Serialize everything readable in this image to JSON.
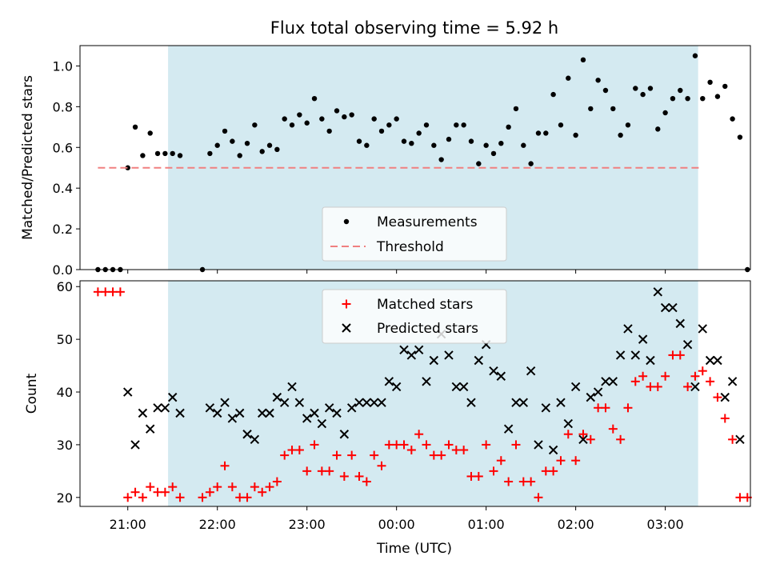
{
  "chart_data": [
    {
      "type": "scatter",
      "title": "Flux total observing time = 5.92 h",
      "ylabel": "Matched/Predicted stars",
      "ylim": [
        0,
        1.1
      ],
      "yticks": [
        "0.0",
        "0.2",
        "0.4",
        "0.6",
        "0.8",
        "1.0"
      ],
      "xlim": [
        "20:28",
        "03:57"
      ],
      "shaded_span": [
        "21:27",
        "03:22"
      ],
      "shade_color": "#d4eaf1",
      "threshold": {
        "value": 0.5,
        "from": "20:40",
        "to": "03:25",
        "color": "#f08080"
      },
      "legend": {
        "position": "lower center",
        "items": [
          "Measurements",
          "Threshold"
        ]
      },
      "series": [
        {
          "name": "Measurements",
          "color": "#000000",
          "points": [
            [
              "20:40",
              0.0
            ],
            [
              "20:45",
              0.0
            ],
            [
              "20:50",
              0.0
            ],
            [
              "20:55",
              0.0
            ],
            [
              "21:00",
              0.5
            ],
            [
              "21:05",
              0.7
            ],
            [
              "21:10",
              0.56
            ],
            [
              "21:15",
              0.67
            ],
            [
              "21:20",
              0.57
            ],
            [
              "21:25",
              0.57
            ],
            [
              "21:30",
              0.57
            ],
            [
              "21:35",
              0.56
            ],
            [
              "21:50",
              0.0
            ],
            [
              "21:55",
              0.57
            ],
            [
              "22:00",
              0.61
            ],
            [
              "22:05",
              0.68
            ],
            [
              "22:10",
              0.63
            ],
            [
              "22:15",
              0.56
            ],
            [
              "22:20",
              0.62
            ],
            [
              "22:25",
              0.71
            ],
            [
              "22:30",
              0.58
            ],
            [
              "22:35",
              0.61
            ],
            [
              "22:40",
              0.59
            ],
            [
              "22:45",
              0.74
            ],
            [
              "22:50",
              0.71
            ],
            [
              "22:55",
              0.76
            ],
            [
              "23:00",
              0.72
            ],
            [
              "23:05",
              0.84
            ],
            [
              "23:10",
              0.74
            ],
            [
              "23:15",
              0.68
            ],
            [
              "23:20",
              0.78
            ],
            [
              "23:25",
              0.75
            ],
            [
              "23:30",
              0.76
            ],
            [
              "23:35",
              0.63
            ],
            [
              "23:40",
              0.61
            ],
            [
              "23:45",
              0.74
            ],
            [
              "23:50",
              0.68
            ],
            [
              "23:55",
              0.71
            ],
            [
              "00:00",
              0.74
            ],
            [
              "00:05",
              0.63
            ],
            [
              "00:10",
              0.62
            ],
            [
              "00:15",
              0.67
            ],
            [
              "00:20",
              0.71
            ],
            [
              "00:25",
              0.61
            ],
            [
              "00:30",
              0.54
            ],
            [
              "00:35",
              0.64
            ],
            [
              "00:40",
              0.71
            ],
            [
              "00:45",
              0.71
            ],
            [
              "00:50",
              0.63
            ],
            [
              "00:55",
              0.52
            ],
            [
              "01:00",
              0.61
            ],
            [
              "01:05",
              0.57
            ],
            [
              "01:10",
              0.62
            ],
            [
              "01:15",
              0.7
            ],
            [
              "01:20",
              0.79
            ],
            [
              "01:25",
              0.61
            ],
            [
              "01:30",
              0.52
            ],
            [
              "01:35",
              0.67
            ],
            [
              "01:40",
              0.67
            ],
            [
              "01:45",
              0.86
            ],
            [
              "01:50",
              0.71
            ],
            [
              "01:55",
              0.94
            ],
            [
              "02:00",
              0.66
            ],
            [
              "02:05",
              1.03
            ],
            [
              "02:10",
              0.79
            ],
            [
              "02:15",
              0.93
            ],
            [
              "02:20",
              0.88
            ],
            [
              "02:25",
              0.79
            ],
            [
              "02:30",
              0.66
            ],
            [
              "02:35",
              0.71
            ],
            [
              "02:40",
              0.89
            ],
            [
              "02:45",
              0.86
            ],
            [
              "02:50",
              0.89
            ],
            [
              "02:55",
              0.69
            ],
            [
              "03:00",
              0.77
            ],
            [
              "03:05",
              0.84
            ],
            [
              "03:10",
              0.88
            ],
            [
              "03:15",
              0.84
            ],
            [
              "03:20",
              1.05
            ],
            [
              "03:25",
              0.84
            ],
            [
              "03:30",
              0.92
            ],
            [
              "03:35",
              0.85
            ],
            [
              "03:40",
              0.9
            ],
            [
              "03:45",
              0.74
            ],
            [
              "03:50",
              0.65
            ],
            [
              "03:55",
              0.0
            ]
          ]
        }
      ]
    },
    {
      "type": "scatter",
      "xlabel": "Time (UTC)",
      "ylabel": "Count",
      "ylim": [
        18.3,
        61.1
      ],
      "yticks": [
        "20",
        "30",
        "40",
        "50",
        "60"
      ],
      "xlim": [
        "20:28",
        "03:57"
      ],
      "xticks": [
        "21:00",
        "22:00",
        "23:00",
        "00:00",
        "01:00",
        "02:00",
        "03:00"
      ],
      "shaded_span": [
        "21:27",
        "03:22"
      ],
      "shade_color": "#d4eaf1",
      "legend": {
        "position": "upper center",
        "items": [
          "Matched stars",
          "Predicted stars"
        ]
      },
      "series": [
        {
          "name": "Matched stars",
          "color": "#ff0000",
          "points": [
            [
              "20:40",
              59
            ],
            [
              "20:45",
              59
            ],
            [
              "20:50",
              59
            ],
            [
              "20:55",
              59
            ],
            [
              "21:00",
              20
            ],
            [
              "21:05",
              21
            ],
            [
              "21:10",
              20
            ],
            [
              "21:15",
              22
            ],
            [
              "21:20",
              21
            ],
            [
              "21:25",
              21
            ],
            [
              "21:30",
              22
            ],
            [
              "21:35",
              20
            ],
            [
              "21:50",
              20
            ],
            [
              "21:55",
              21
            ],
            [
              "22:00",
              22
            ],
            [
              "22:05",
              26
            ],
            [
              "22:10",
              22
            ],
            [
              "22:15",
              20
            ],
            [
              "22:20",
              20
            ],
            [
              "22:25",
              22
            ],
            [
              "22:30",
              21
            ],
            [
              "22:35",
              22
            ],
            [
              "22:40",
              23
            ],
            [
              "22:45",
              28
            ],
            [
              "22:50",
              29
            ],
            [
              "22:55",
              29
            ],
            [
              "23:00",
              25
            ],
            [
              "23:05",
              30
            ],
            [
              "23:10",
              25
            ],
            [
              "23:15",
              25
            ],
            [
              "23:20",
              28
            ],
            [
              "23:25",
              24
            ],
            [
              "23:30",
              28
            ],
            [
              "23:35",
              24
            ],
            [
              "23:40",
              23
            ],
            [
              "23:45",
              28
            ],
            [
              "23:50",
              26
            ],
            [
              "23:55",
              30
            ],
            [
              "00:00",
              30
            ],
            [
              "00:05",
              30
            ],
            [
              "00:10",
              29
            ],
            [
              "00:15",
              32
            ],
            [
              "00:20",
              30
            ],
            [
              "00:25",
              28
            ],
            [
              "00:30",
              28
            ],
            [
              "00:35",
              30
            ],
            [
              "00:40",
              29
            ],
            [
              "00:45",
              29
            ],
            [
              "00:50",
              24
            ],
            [
              "00:55",
              24
            ],
            [
              "01:00",
              30
            ],
            [
              "01:05",
              25
            ],
            [
              "01:10",
              27
            ],
            [
              "01:15",
              23
            ],
            [
              "01:20",
              30
            ],
            [
              "01:25",
              23
            ],
            [
              "01:30",
              23
            ],
            [
              "01:35",
              20
            ],
            [
              "01:40",
              25
            ],
            [
              "01:45",
              25
            ],
            [
              "01:50",
              27
            ],
            [
              "01:55",
              32
            ],
            [
              "02:00",
              27
            ],
            [
              "02:05",
              32
            ],
            [
              "02:10",
              31
            ],
            [
              "02:15",
              37
            ],
            [
              "02:20",
              37
            ],
            [
              "02:25",
              33
            ],
            [
              "02:30",
              31
            ],
            [
              "02:35",
              37
            ],
            [
              "02:40",
              42
            ],
            [
              "02:45",
              43
            ],
            [
              "02:50",
              41
            ],
            [
              "02:55",
              41
            ],
            [
              "03:00",
              43
            ],
            [
              "03:05",
              47
            ],
            [
              "03:10",
              47
            ],
            [
              "03:15",
              41
            ],
            [
              "03:20",
              43
            ],
            [
              "03:25",
              44
            ],
            [
              "03:30",
              42
            ],
            [
              "03:35",
              39
            ],
            [
              "03:40",
              35
            ],
            [
              "03:45",
              31
            ],
            [
              "03:50",
              20
            ],
            [
              "03:55",
              20
            ]
          ]
        },
        {
          "name": "Predicted stars",
          "color": "#000000",
          "points": [
            [
              "21:00",
              40
            ],
            [
              "21:05",
              30
            ],
            [
              "21:10",
              36
            ],
            [
              "21:15",
              33
            ],
            [
              "21:20",
              37
            ],
            [
              "21:25",
              37
            ],
            [
              "21:30",
              39
            ],
            [
              "21:35",
              36
            ],
            [
              "21:55",
              37
            ],
            [
              "22:00",
              36
            ],
            [
              "22:05",
              38
            ],
            [
              "22:10",
              35
            ],
            [
              "22:15",
              36
            ],
            [
              "22:20",
              32
            ],
            [
              "22:25",
              31
            ],
            [
              "22:30",
              36
            ],
            [
              "22:35",
              36
            ],
            [
              "22:40",
              39
            ],
            [
              "22:45",
              38
            ],
            [
              "22:50",
              41
            ],
            [
              "22:55",
              38
            ],
            [
              "23:00",
              35
            ],
            [
              "23:05",
              36
            ],
            [
              "23:10",
              34
            ],
            [
              "23:15",
              37
            ],
            [
              "23:20",
              36
            ],
            [
              "23:25",
              32
            ],
            [
              "23:30",
              37
            ],
            [
              "23:35",
              38
            ],
            [
              "23:40",
              38
            ],
            [
              "23:45",
              38
            ],
            [
              "23:50",
              38
            ],
            [
              "23:55",
              42
            ],
            [
              "00:00",
              41
            ],
            [
              "00:05",
              48
            ],
            [
              "00:10",
              47
            ],
            [
              "00:15",
              48
            ],
            [
              "00:20",
              42
            ],
            [
              "00:25",
              46
            ],
            [
              "00:30",
              51
            ],
            [
              "00:35",
              47
            ],
            [
              "00:40",
              41
            ],
            [
              "00:45",
              41
            ],
            [
              "00:50",
              38
            ],
            [
              "00:55",
              46
            ],
            [
              "01:00",
              49
            ],
            [
              "01:05",
              44
            ],
            [
              "01:10",
              43
            ],
            [
              "01:15",
              33
            ],
            [
              "01:20",
              38
            ],
            [
              "01:25",
              38
            ],
            [
              "01:30",
              44
            ],
            [
              "01:35",
              30
            ],
            [
              "01:40",
              37
            ],
            [
              "01:45",
              29
            ],
            [
              "01:50",
              38
            ],
            [
              "01:55",
              34
            ],
            [
              "02:00",
              41
            ],
            [
              "02:05",
              31
            ],
            [
              "02:10",
              39
            ],
            [
              "02:15",
              40
            ],
            [
              "02:20",
              42
            ],
            [
              "02:25",
              42
            ],
            [
              "02:30",
              47
            ],
            [
              "02:35",
              52
            ],
            [
              "02:40",
              47
            ],
            [
              "02:45",
              50
            ],
            [
              "02:50",
              46
            ],
            [
              "02:55",
              59
            ],
            [
              "03:00",
              56
            ],
            [
              "03:05",
              56
            ],
            [
              "03:10",
              53
            ],
            [
              "03:15",
              49
            ],
            [
              "03:20",
              41
            ],
            [
              "03:25",
              52
            ],
            [
              "03:30",
              46
            ],
            [
              "03:35",
              46
            ],
            [
              "03:40",
              39
            ],
            [
              "03:45",
              42
            ],
            [
              "03:50",
              31
            ]
          ]
        }
      ]
    }
  ]
}
